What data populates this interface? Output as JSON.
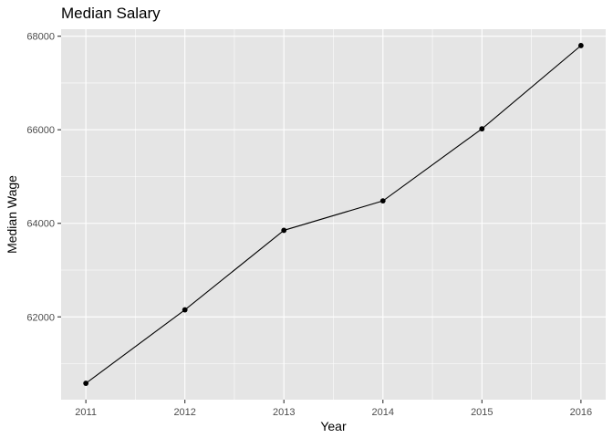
{
  "chart_data": {
    "type": "line",
    "title": "Median Salary",
    "xlabel": "Year",
    "ylabel": "Median Wage",
    "x": [
      2011,
      2012,
      2013,
      2014,
      2015,
      2016
    ],
    "series": [
      {
        "values": [
          60580,
          62150,
          63850,
          64480,
          66020,
          67800
        ]
      }
    ],
    "xticks": [
      "2011",
      "2012",
      "2013",
      "2014",
      "2015",
      "2016"
    ],
    "yticks": [
      "62000",
      "64000",
      "66000",
      "68000"
    ],
    "ylim": [
      60230,
      68150
    ],
    "xlim": [
      2010.75,
      2016.25
    ],
    "grid": true,
    "legend": "none",
    "colors": {
      "panel": "#e5e5e5",
      "grid": "#ffffff",
      "line": "#000000",
      "point": "#000000"
    }
  }
}
